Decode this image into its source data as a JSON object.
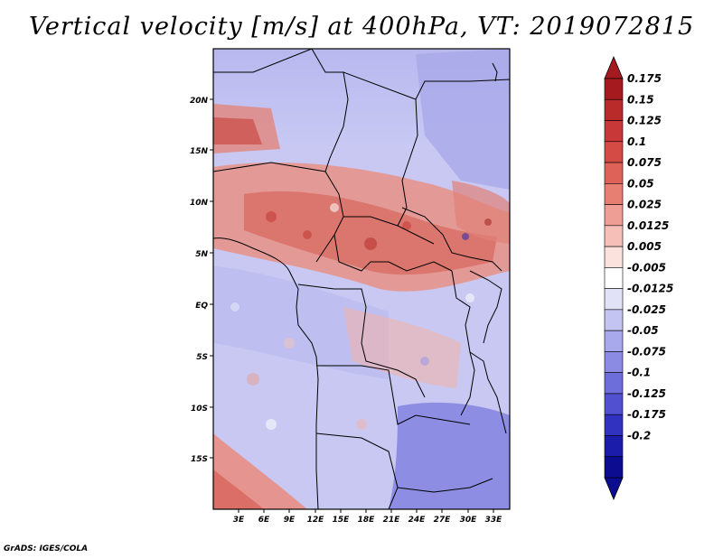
{
  "title": "Vertical velocity [m/s] at 400hPa, VT: 2019072815",
  "credit": "GrADS: IGES/COLA",
  "map": {
    "lat_labels": [
      "20N",
      "15N",
      "10N",
      "5N",
      "EQ",
      "5S",
      "10S",
      "15S"
    ],
    "lon_labels": [
      "3E",
      "6E",
      "9E",
      "12E",
      "15E",
      "18E",
      "21E",
      "24E",
      "27E",
      "30E",
      "33E"
    ],
    "lat_range": [
      -20,
      25
    ],
    "lon_range": [
      0,
      35
    ]
  },
  "colorbar": {
    "labels": [
      "0.175",
      "0.15",
      "0.125",
      "0.1",
      "0.075",
      "0.05",
      "0.025",
      "0.0125",
      "0.005",
      "-0.005",
      "-0.0125",
      "-0.025",
      "-0.05",
      "-0.075",
      "-0.1",
      "-0.125",
      "-0.175",
      "-0.2"
    ],
    "colors": [
      "#a51a1f",
      "#b92a2a",
      "#c93838",
      "#d44a44",
      "#de6258",
      "#e77f72",
      "#ef9e95",
      "#f6c0b8",
      "#fbe2dd",
      "#ffffff",
      "#e1e1f8",
      "#c4c4f2",
      "#a8a8ec",
      "#8b8be3",
      "#6e6edb",
      "#5050d0",
      "#3232c0",
      "#1c1caa",
      "#0c0c90"
    ],
    "top_cap_color": "#a51a1f",
    "bottom_cap_color": "#0c0c90"
  }
}
